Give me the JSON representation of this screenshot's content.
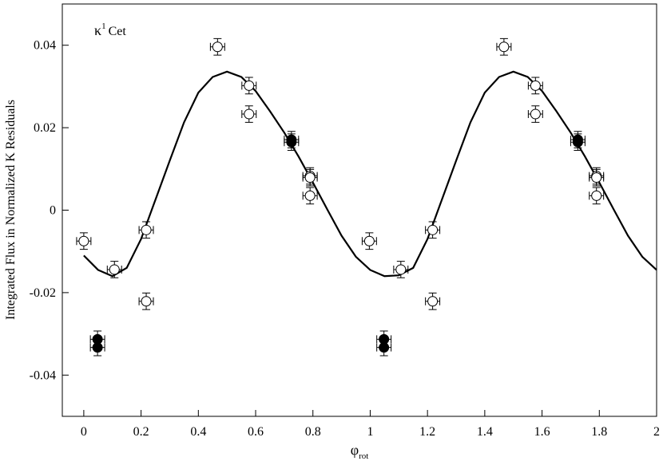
{
  "chart_data": {
    "type": "scatter",
    "annotation": {
      "symbol": "κ",
      "superscript": "1",
      "text": "Cet"
    },
    "ylabel": "Integrated Flux in Normalized K Residuals",
    "xlabel": {
      "symbol": "φ",
      "subscript": "rot"
    },
    "xlim": [
      -0.075,
      2
    ],
    "ylim": [
      -0.05,
      0.05
    ],
    "xticks": [
      0,
      0.2,
      0.4,
      0.6,
      0.8,
      1,
      1.2,
      1.4,
      1.6,
      1.8,
      2
    ],
    "yticks": [
      -0.04,
      -0.02,
      0,
      0.02,
      0.04
    ],
    "series": [
      {
        "color": "#000000",
        "fill": "#ffffff",
        "xerr": 0.025,
        "yerr": 0.002,
        "x": [
          0,
          0.107,
          0.218,
          0.218,
          0.467,
          0.577,
          0.577,
          0.79,
          0.79,
          0.79,
          0.997,
          1.107,
          1.218,
          1.218,
          1.467,
          1.577,
          1.577,
          1.79,
          1.79,
          1.79
        ],
        "values": [
          -0.0075,
          -0.0144,
          -0.0048,
          -0.0221,
          0.0396,
          0.0302,
          0.0233,
          0.0083,
          0.0079,
          0.0035,
          -0.0075,
          -0.0144,
          -0.0048,
          -0.0221,
          0.0396,
          0.0302,
          0.0233,
          0.0083,
          0.0079,
          0.0035
        ]
      },
      {
        "color": "#000000",
        "fill": "#000000",
        "xerr": 0.025,
        "yerr": 0.002,
        "x": [
          0.048,
          0.048,
          0.725,
          0.725,
          1.048,
          1.048,
          1.725,
          1.725
        ],
        "values": [
          -0.0313,
          -0.0333,
          0.0171,
          0.0165,
          -0.0313,
          -0.0333,
          0.0171,
          0.0165
        ]
      }
    ],
    "curve": {
      "color": "#000000",
      "x": [
        0,
        0.05,
        0.1,
        0.15,
        0.2,
        0.25,
        0.3,
        0.35,
        0.4,
        0.45,
        0.5,
        0.55,
        0.6,
        0.65,
        0.7,
        0.75,
        0.8,
        0.85,
        0.9,
        0.95,
        1,
        1.05,
        1.1,
        1.15,
        1.2,
        1.25,
        1.3,
        1.35,
        1.4,
        1.45,
        1.5,
        1.55,
        1.6,
        1.65,
        1.7,
        1.75,
        1.8,
        1.85,
        1.9,
        1.95,
        2
      ],
      "values": [
        -0.011,
        -0.0145,
        -0.016,
        -0.014,
        -0.007,
        0.0025,
        0.012,
        0.0213,
        0.0285,
        0.0323,
        0.0336,
        0.0323,
        0.0289,
        0.024,
        0.0188,
        0.013,
        0.0067,
        0.0002,
        -0.0062,
        -0.0113,
        -0.0145,
        -0.016,
        -0.0158,
        -0.014,
        -0.007,
        0.0025,
        0.012,
        0.0213,
        0.0285,
        0.0323,
        0.0336,
        0.0323,
        0.0289,
        0.024,
        0.0188,
        0.013,
        0.0067,
        0.0002,
        -0.0062,
        -0.0113,
        -0.0145
      ]
    }
  }
}
